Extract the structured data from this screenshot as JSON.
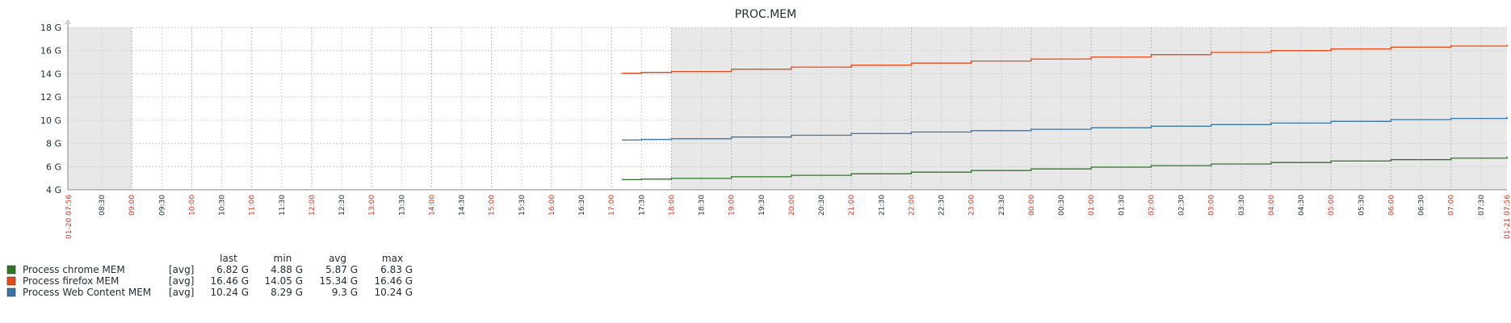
{
  "chart_data": {
    "type": "line",
    "title": "PROC.MEM",
    "y_unit": "G",
    "ylim": [
      4,
      18
    ],
    "y_ticks": [
      4,
      6,
      8,
      10,
      12,
      14,
      16,
      18
    ],
    "y_tick_labels": [
      "4 G",
      "6 G",
      "8 G",
      "10 G",
      "12 G",
      "14 G",
      "16 G",
      "18 G"
    ],
    "x_start": "01-20 07:56",
    "x_end": "01-21 07:56",
    "x_start_label": "01-20 07:56",
    "x_end_label": "01-21 07:56",
    "x_ticks": [
      {
        "label": "08:30",
        "major": false
      },
      {
        "label": "09:00",
        "major": true
      },
      {
        "label": "09:30",
        "major": false
      },
      {
        "label": "10:00",
        "major": true
      },
      {
        "label": "10:30",
        "major": false
      },
      {
        "label": "11:00",
        "major": true
      },
      {
        "label": "11:30",
        "major": false
      },
      {
        "label": "12:00",
        "major": true
      },
      {
        "label": "12:30",
        "major": false
      },
      {
        "label": "13:00",
        "major": true
      },
      {
        "label": "13:30",
        "major": false
      },
      {
        "label": "14:00",
        "major": true
      },
      {
        "label": "14:30",
        "major": false
      },
      {
        "label": "15:00",
        "major": true
      },
      {
        "label": "15:30",
        "major": false
      },
      {
        "label": "16:00",
        "major": true
      },
      {
        "label": "16:30",
        "major": false
      },
      {
        "label": "17:00",
        "major": true
      },
      {
        "label": "17:30",
        "major": false
      },
      {
        "label": "18:00",
        "major": true
      },
      {
        "label": "18:30",
        "major": false
      },
      {
        "label": "19:00",
        "major": true
      },
      {
        "label": "19:30",
        "major": false
      },
      {
        "label": "20:00",
        "major": true
      },
      {
        "label": "20:30",
        "major": false
      },
      {
        "label": "21:00",
        "major": true
      },
      {
        "label": "21:30",
        "major": false
      },
      {
        "label": "22:00",
        "major": true
      },
      {
        "label": "22:30",
        "major": false
      },
      {
        "label": "23:00",
        "major": true
      },
      {
        "label": "23:30",
        "major": false
      },
      {
        "label": "00:00",
        "major": true
      },
      {
        "label": "00:30",
        "major": false
      },
      {
        "label": "01:00",
        "major": true
      },
      {
        "label": "01:30",
        "major": false
      },
      {
        "label": "02:00",
        "major": true
      },
      {
        "label": "02:30",
        "major": false
      },
      {
        "label": "03:00",
        "major": true
      },
      {
        "label": "03:30",
        "major": false
      },
      {
        "label": "04:00",
        "major": true
      },
      {
        "label": "04:30",
        "major": false
      },
      {
        "label": "05:00",
        "major": true
      },
      {
        "label": "05:30",
        "major": false
      },
      {
        "label": "06:00",
        "major": true
      },
      {
        "label": "06:30",
        "major": false
      },
      {
        "label": "07:00",
        "major": true
      },
      {
        "label": "07:30",
        "major": false
      }
    ],
    "shaded_periods": [
      {
        "start": "01-20 07:56",
        "end": "01-20 09:00"
      },
      {
        "start": "01-20 18:00",
        "end": "01-21 07:56"
      }
    ],
    "grid": true,
    "legend_position": "bottom-left",
    "legend_headers": [
      "last",
      "min",
      "avg",
      "max"
    ],
    "series": [
      {
        "name": "Process chrome MEM",
        "agg": "[avg]",
        "color": "#2a7a24",
        "last": "6.82 G",
        "min": "4.88 G",
        "avg": "5.87 G",
        "max": "6.83 G",
        "points": [
          [
            "01-20 17:11",
            4.88
          ],
          [
            "01-20 17:30",
            4.92
          ],
          [
            "01-20 18:00",
            4.98
          ],
          [
            "01-20 19:00",
            5.12
          ],
          [
            "01-20 20:00",
            5.25
          ],
          [
            "01-20 21:00",
            5.38
          ],
          [
            "01-20 22:00",
            5.52
          ],
          [
            "01-20 23:00",
            5.66
          ],
          [
            "01-21 00:00",
            5.8
          ],
          [
            "01-21 01:00",
            5.95
          ],
          [
            "01-21 02:00",
            6.08
          ],
          [
            "01-21 03:00",
            6.22
          ],
          [
            "01-21 04:00",
            6.35
          ],
          [
            "01-21 05:00",
            6.48
          ],
          [
            "01-21 06:00",
            6.6
          ],
          [
            "01-21 07:00",
            6.72
          ],
          [
            "01-21 07:56",
            6.82
          ]
        ]
      },
      {
        "name": "Process firefox MEM",
        "agg": "[avg]",
        "color": "#e64a19",
        "last": "16.46 G",
        "min": "14.05 G",
        "avg": "15.34 G",
        "max": "16.46 G",
        "points": [
          [
            "01-20 17:11",
            14.05
          ],
          [
            "01-20 17:30",
            14.12
          ],
          [
            "01-20 18:00",
            14.2
          ],
          [
            "01-20 19:00",
            14.4
          ],
          [
            "01-20 20:00",
            14.58
          ],
          [
            "01-20 21:00",
            14.75
          ],
          [
            "01-20 22:00",
            14.92
          ],
          [
            "01-20 23:00",
            15.1
          ],
          [
            "01-21 00:00",
            15.28
          ],
          [
            "01-21 01:00",
            15.45
          ],
          [
            "01-21 02:00",
            15.65
          ],
          [
            "01-21 03:00",
            15.85
          ],
          [
            "01-21 04:00",
            16.0
          ],
          [
            "01-21 05:00",
            16.15
          ],
          [
            "01-21 06:00",
            16.3
          ],
          [
            "01-21 07:00",
            16.4
          ],
          [
            "01-21 07:56",
            16.46
          ]
        ]
      },
      {
        "name": "Process Web Content MEM",
        "agg": "[avg]",
        "color": "#3a75a8",
        "last": "10.24 G",
        "min": "8.29 G",
        "avg": "9.3 G",
        "max": "10.24 G",
        "points": [
          [
            "01-20 17:11",
            8.29
          ],
          [
            "01-20 17:30",
            8.34
          ],
          [
            "01-20 18:00",
            8.4
          ],
          [
            "01-20 19:00",
            8.55
          ],
          [
            "01-20 20:00",
            8.7
          ],
          [
            "01-20 21:00",
            8.85
          ],
          [
            "01-20 22:00",
            8.98
          ],
          [
            "01-20 23:00",
            9.1
          ],
          [
            "01-21 00:00",
            9.22
          ],
          [
            "01-21 01:00",
            9.35
          ],
          [
            "01-21 02:00",
            9.48
          ],
          [
            "01-21 03:00",
            9.62
          ],
          [
            "01-21 04:00",
            9.75
          ],
          [
            "01-21 05:00",
            9.9
          ],
          [
            "01-21 06:00",
            10.05
          ],
          [
            "01-21 07:00",
            10.16
          ],
          [
            "01-21 07:56",
            10.24
          ]
        ]
      }
    ]
  }
}
